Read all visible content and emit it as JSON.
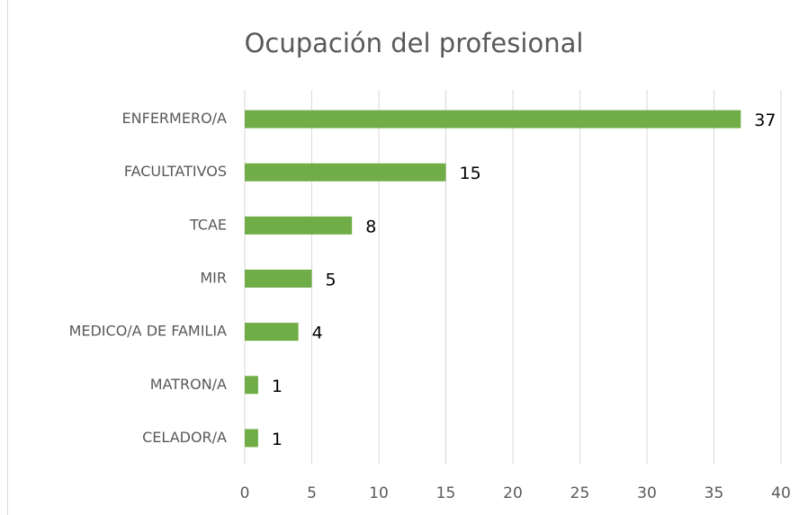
{
  "chart_data": {
    "type": "bar",
    "orientation": "horizontal",
    "title": "Ocupación del profesional",
    "categories": [
      "ENFERMERO/A",
      "FACULTATIVOS",
      "TCAE",
      "MIR",
      "MEDICO/A DE FAMILIA",
      "MATRON/A",
      "CELADOR/A"
    ],
    "values": [
      37,
      15,
      8,
      5,
      4,
      1,
      1
    ],
    "color": "#70ad47",
    "xlim": [
      0,
      40
    ],
    "xticks": [
      0,
      5,
      10,
      15,
      20,
      25,
      30,
      35,
      40
    ],
    "grid": true
  }
}
